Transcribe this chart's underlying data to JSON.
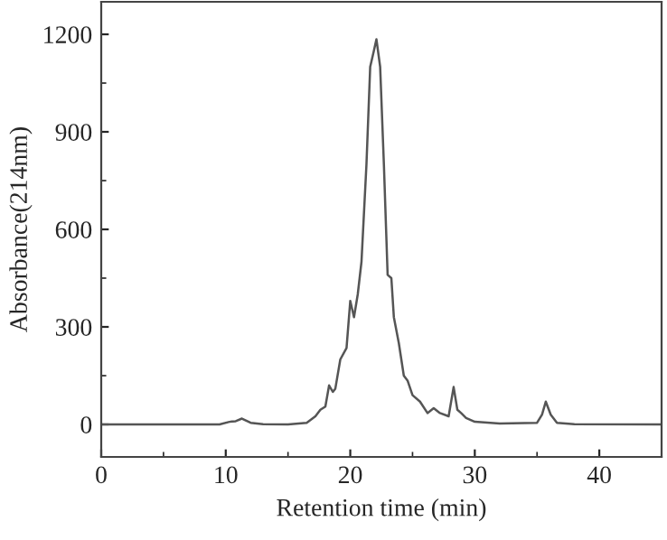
{
  "chart_data": {
    "type": "line",
    "xlabel": "Retention time (min)",
    "ylabel": "Absorbance(214nm)",
    "xlim": [
      0,
      45
    ],
    "xticks": [
      0,
      10,
      20,
      30,
      40
    ],
    "ylim": [
      -100,
      1300
    ],
    "yticks": [
      0,
      300,
      600,
      900,
      1200
    ],
    "grid": false,
    "legend": false,
    "series": [
      {
        "color": "#555555",
        "x": [
          0,
          9.5,
          10.3,
          10.8,
          11.3,
          12,
          13,
          15,
          16.5,
          17.2,
          17.6,
          18.0,
          18.3,
          18.6,
          18.8,
          19.2,
          19.7,
          20.0,
          20.3,
          20.6,
          20.9,
          21.3,
          21.6,
          21.9,
          22.1,
          22.4,
          22.7,
          23.0,
          23.3,
          23.5,
          23.9,
          24.3,
          24.6,
          25.0,
          25.6,
          26.2,
          26.7,
          27.2,
          27.9,
          28.3,
          28.6,
          28.9,
          29.3,
          30,
          32,
          35,
          35.4,
          35.7,
          36.1,
          36.6,
          38,
          45
        ],
        "values": [
          0,
          0,
          8,
          10,
          18,
          5,
          1,
          0,
          5,
          25,
          45,
          55,
          120,
          100,
          110,
          200,
          235,
          380,
          330,
          400,
          500,
          800,
          1100,
          1150,
          1185,
          1100,
          800,
          460,
          450,
          330,
          250,
          150,
          135,
          90,
          70,
          35,
          50,
          35,
          25,
          115,
          45,
          35,
          20,
          8,
          3,
          5,
          30,
          70,
          30,
          5,
          1,
          0
        ]
      }
    ]
  }
}
